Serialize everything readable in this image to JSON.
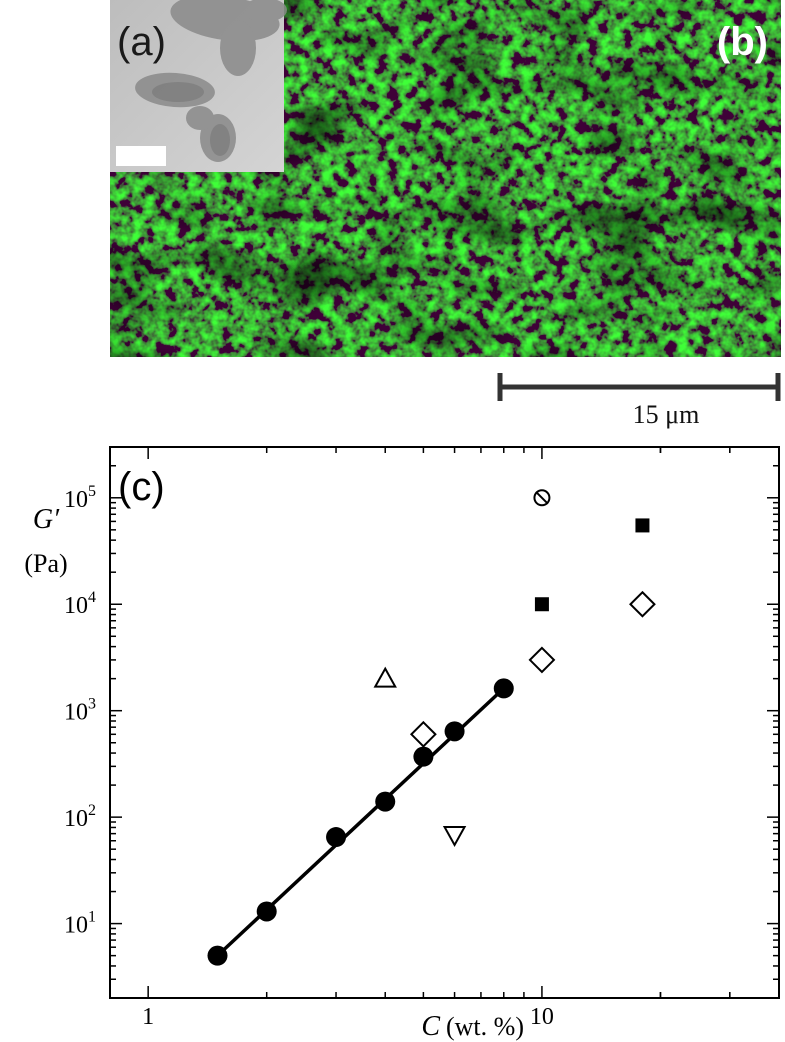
{
  "panel_a": {
    "label": "(a)"
  },
  "panel_b": {
    "label": "(b)",
    "scale_bar_label": "15 μm"
  },
  "panel_c": {
    "label": "(c)"
  },
  "colors": {
    "micrograph_green": "#22c21e",
    "micrograph_dark": "#061806",
    "tem_gray": "#c9c9c9",
    "ink": "#000000"
  },
  "chart_data": {
    "type": "scatter",
    "title": "",
    "xlabel_symbol": "C",
    "xlabel_unit": "(wt. %)",
    "ylabel_symbol": "G′",
    "ylabel_unit": "(Pa)",
    "x_scale": "log",
    "y_scale": "log",
    "xlim": [
      0.8,
      40
    ],
    "ylim": [
      2,
      300000
    ],
    "x_ticks": [
      1,
      10
    ],
    "x_tick_labels": [
      "1",
      "10"
    ],
    "y_ticks": [
      10,
      100,
      1000,
      10000,
      100000
    ],
    "y_tick_exponents": [
      "1",
      "2",
      "3",
      "4",
      "5"
    ],
    "grid": false,
    "series": [
      {
        "marker": "filled-circle",
        "x": [
          1.5,
          2,
          3,
          4,
          5,
          6,
          8
        ],
        "y": [
          5,
          13,
          65,
          140,
          370,
          640,
          1620
        ]
      },
      {
        "marker": "open-diamond",
        "x": [
          5,
          10,
          18
        ],
        "y": [
          600,
          3000,
          10000
        ]
      },
      {
        "marker": "filled-square",
        "x": [
          10,
          18
        ],
        "y": [
          10000,
          55000
        ]
      },
      {
        "marker": "open-triangle-up",
        "x": [
          4
        ],
        "y": [
          2000
        ]
      },
      {
        "marker": "open-triangle-down",
        "x": [
          6
        ],
        "y": [
          68
        ]
      },
      {
        "marker": "crossed-circle",
        "x": [
          10
        ],
        "y": [
          100000
        ]
      }
    ],
    "fit_line": {
      "x": [
        1.5,
        8
      ],
      "y": [
        5,
        1620
      ]
    }
  }
}
